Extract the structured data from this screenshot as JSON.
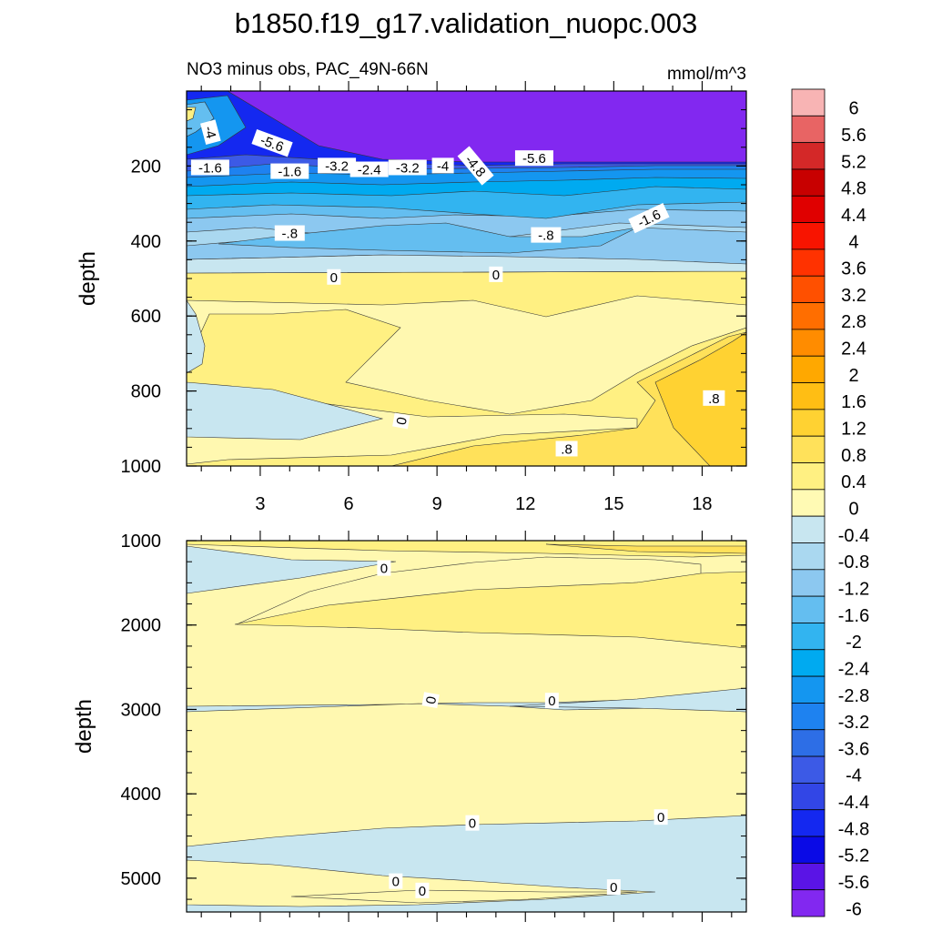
{
  "chart_data": {
    "type": "contour",
    "title": "b1850.f19_g17.validation_nuopc.003",
    "subtitle_left": "NO3 minus obs, PAC_49N-66N",
    "subtitle_right": "mmol/m^3",
    "colorbar": {
      "levels": [
        "6",
        "5.6",
        "5.2",
        "4.8",
        "4.4",
        "4",
        "3.6",
        "3.2",
        "2.8",
        "2.4",
        "2",
        "1.6",
        "1.2",
        "0.8",
        "0.4",
        "0",
        "-0.4",
        "-0.8",
        "-1.2",
        "-1.6",
        "-2",
        "-2.4",
        "-2.8",
        "-3.2",
        "-3.6",
        "-4",
        "-4.4",
        "-4.8",
        "-5.2",
        "-5.6",
        "-6"
      ],
      "colors": [
        "#f8b4b4",
        "#e86464",
        "#d42828",
        "#c80000",
        "#e00000",
        "#f81400",
        "#ff3200",
        "#ff5000",
        "#ff6e00",
        "#ff8c00",
        "#ffa800",
        "#ffbe14",
        "#ffd232",
        "#ffe15a",
        "#fff082",
        "#fffab4",
        "#c8e6f0",
        "#aad8f0",
        "#8cc8f0",
        "#64bef0",
        "#32b4f0",
        "#00aaf0",
        "#1496f0",
        "#1e82f0",
        "#2d6ee6",
        "#3c5ae6",
        "#3246e6",
        "#1428f0",
        "#0a0ae6",
        "#5a14e6",
        "#8228f0"
      ]
    },
    "panels": [
      {
        "id": "upper",
        "ylabel": "depth",
        "ylim": [
          0,
          1000
        ],
        "y_ticks": [
          "200",
          "400",
          "600",
          "800",
          "1000"
        ],
        "x_ticks": [
          "3",
          "6",
          "9",
          "12",
          "15",
          "18"
        ],
        "xlim": [
          0.5,
          19.5
        ],
        "contour_labels": [
          {
            "text": "-4",
            "x": 1.3,
            "y": 110,
            "angle": 75
          },
          {
            "text": "-5.6",
            "x": 3.4,
            "y": 140,
            "angle": 20
          },
          {
            "text": "-1.6",
            "x": 1.3,
            "y": 205,
            "angle": 0
          },
          {
            "text": "-1.6",
            "x": 4.0,
            "y": 215,
            "angle": 0
          },
          {
            "text": "-3.2",
            "x": 5.6,
            "y": 200,
            "angle": 0
          },
          {
            "text": "-2.4",
            "x": 6.7,
            "y": 210,
            "angle": 0
          },
          {
            "text": "-3.2",
            "x": 8.0,
            "y": 205,
            "angle": 0
          },
          {
            "text": "-4",
            "x": 9.2,
            "y": 200,
            "angle": 0
          },
          {
            "text": "-4.8",
            "x": 10.3,
            "y": 200,
            "angle": 50
          },
          {
            "text": "-5.6",
            "x": 12.3,
            "y": 180,
            "angle": 0
          },
          {
            "text": "-1.6",
            "x": 16.2,
            "y": 340,
            "angle": -25
          },
          {
            "text": "-.8",
            "x": 4.0,
            "y": 380,
            "angle": 0
          },
          {
            "text": "-.8",
            "x": 12.7,
            "y": 385,
            "angle": 0
          },
          {
            "text": "0",
            "x": 5.5,
            "y": 497,
            "angle": 0
          },
          {
            "text": "0",
            "x": 11.0,
            "y": 490,
            "angle": 0
          },
          {
            "text": "0",
            "x": 7.8,
            "y": 880,
            "angle": -80
          },
          {
            "text": ".8",
            "x": 18.4,
            "y": 820,
            "angle": 0
          },
          {
            "text": ".8",
            "x": 13.4,
            "y": 955,
            "angle": 0
          }
        ]
      },
      {
        "id": "lower",
        "ylabel": "depth",
        "ylim": [
          1000,
          5400
        ],
        "y_ticks": [
          "1000",
          "2000",
          "3000",
          "4000",
          "5000"
        ],
        "xlim": [
          0.5,
          19.5
        ],
        "contour_labels": [
          {
            "text": "0",
            "x": 7.2,
            "y": 1330,
            "angle": 0
          },
          {
            "text": "0",
            "x": 8.8,
            "y": 2890,
            "angle": -80
          },
          {
            "text": "0",
            "x": 12.9,
            "y": 2900,
            "angle": 0
          },
          {
            "text": "0",
            "x": 10.2,
            "y": 4350,
            "angle": 0
          },
          {
            "text": "0",
            "x": 16.6,
            "y": 4280,
            "angle": 0
          },
          {
            "text": "0",
            "x": 7.6,
            "y": 5040,
            "angle": 0
          },
          {
            "text": "0",
            "x": 8.5,
            "y": 5150,
            "angle": 0
          },
          {
            "text": "0",
            "x": 15.0,
            "y": 5110,
            "angle": 0
          }
        ]
      }
    ]
  }
}
